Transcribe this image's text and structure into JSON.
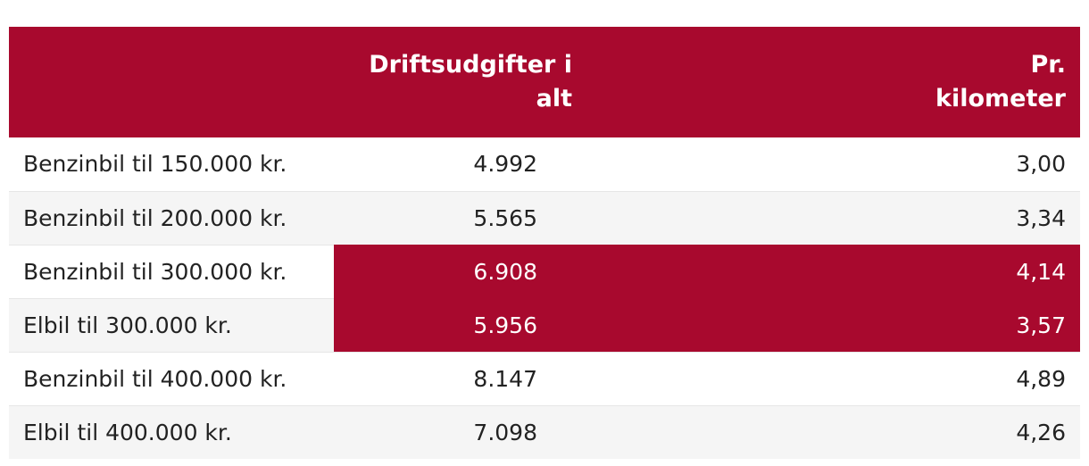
{
  "table": {
    "headers": {
      "label": "",
      "total": "Driftsudgifter i alt",
      "per_km_line1": "Pr.",
      "per_km_line2": "kilometer"
    },
    "rows": [
      {
        "label": "Benzinbil til 150.000 kr.",
        "total": "4.992",
        "per_km": "3,00",
        "highlighted": false
      },
      {
        "label": "Benzinbil til 200.000 kr.",
        "total": "5.565",
        "per_km": "3,34",
        "highlighted": false
      },
      {
        "label": "Benzinbil til 300.000 kr.",
        "total": "6.908",
        "per_km": "4,14",
        "highlighted": true
      },
      {
        "label": "Elbil til 300.000 kr.",
        "total": "5.956",
        "per_km": "3,57",
        "highlighted": true
      },
      {
        "label": "Benzinbil til 400.000 kr.",
        "total": "8.147",
        "per_km": "4,89",
        "highlighted": false
      },
      {
        "label": "Elbil til 400.000 kr.",
        "total": "7.098",
        "per_km": "4,26",
        "highlighted": false
      }
    ]
  },
  "colors": {
    "header_background": "#a8092e",
    "highlight_background": "#a8092e",
    "stripe_background": "#f5f5f5"
  }
}
